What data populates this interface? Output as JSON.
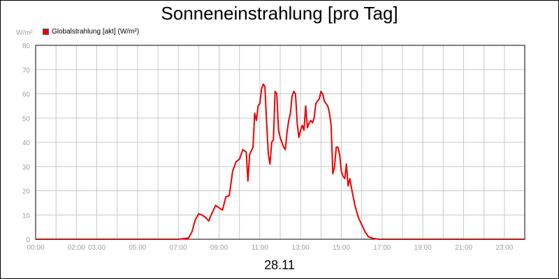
{
  "header": {
    "title": "Sonneneinstrahlung [pro Tag]",
    "unit": "W/m²",
    "date": "28.11"
  },
  "chart_data": {
    "type": "line",
    "title": "Sonneneinstrahlung [pro Tag]",
    "ylabel": "W/m²",
    "xlabel": "28.11",
    "ylim": [
      0,
      80
    ],
    "xlim_hours": [
      0,
      24
    ],
    "y_ticks": [
      "0",
      "10",
      "20",
      "30",
      "40",
      "50",
      "60",
      "70",
      "80"
    ],
    "x_ticks": [
      {
        "hour": 0,
        "label": "00:00"
      },
      {
        "hour": 2,
        "label": "02:00"
      },
      {
        "hour": 3,
        "label": "03:00"
      },
      {
        "hour": 5,
        "label": "05:00"
      },
      {
        "hour": 7,
        "label": "07:00"
      },
      {
        "hour": 9,
        "label": "09:00"
      },
      {
        "hour": 11,
        "label": "11:00"
      },
      {
        "hour": 13,
        "label": "13:00"
      },
      {
        "hour": 15,
        "label": "15:00"
      },
      {
        "hour": 17,
        "label": "17:00"
      },
      {
        "hour": 19,
        "label": "19:00"
      },
      {
        "hour": 21,
        "label": "21:00"
      },
      {
        "hour": 23,
        "label": "23:00"
      }
    ],
    "grid": true,
    "legend_position": "top-left",
    "series": [
      {
        "name": "Globalstrahlung [akt] (W/m²)",
        "color": "#ee0000",
        "x": [
          "00:00",
          "07:00",
          "07:30",
          "07:40",
          "07:50",
          "08:00",
          "08:10",
          "08:20",
          "08:30",
          "08:35",
          "08:40",
          "08:50",
          "09:00",
          "09:10",
          "09:20",
          "09:30",
          "09:40",
          "09:50",
          "10:00",
          "10:10",
          "10:20",
          "10:25",
          "10:30",
          "10:40",
          "10:45",
          "10:50",
          "10:55",
          "11:00",
          "11:05",
          "11:10",
          "11:15",
          "11:20",
          "11:25",
          "11:30",
          "11:35",
          "11:40",
          "11:45",
          "11:50",
          "11:55",
          "12:00",
          "12:05",
          "12:10",
          "12:15",
          "12:20",
          "12:25",
          "12:30",
          "12:35",
          "12:40",
          "12:45",
          "12:50",
          "12:55",
          "13:00",
          "13:05",
          "13:10",
          "13:15",
          "13:20",
          "13:25",
          "13:30",
          "13:35",
          "13:40",
          "13:45",
          "13:50",
          "13:55",
          "14:00",
          "14:05",
          "14:10",
          "14:15",
          "14:20",
          "14:25",
          "14:30",
          "14:35",
          "14:40",
          "14:45",
          "14:50",
          "14:55",
          "15:00",
          "15:05",
          "15:10",
          "15:15",
          "15:20",
          "15:25",
          "15:30",
          "15:40",
          "15:50",
          "16:00",
          "16:10",
          "16:20",
          "16:30",
          "16:40",
          "16:50",
          "17:00",
          "24:00"
        ],
        "y": [
          0,
          0,
          0.5,
          3,
          8,
          10.5,
          10,
          9,
          7.5,
          9.5,
          11,
          14,
          13,
          12,
          17.5,
          18,
          28,
          32,
          33,
          37,
          36,
          24,
          35,
          38,
          52,
          49,
          55,
          56,
          62,
          64,
          63,
          48,
          35,
          31,
          40,
          41,
          61,
          60,
          45,
          42,
          40,
          38,
          37,
          44,
          49,
          52,
          59,
          61,
          60,
          48,
          42,
          45,
          47,
          45,
          55,
          46,
          48,
          49,
          48,
          50,
          56,
          57,
          58,
          61,
          60,
          57,
          56,
          55,
          52,
          47,
          27,
          30,
          38,
          38,
          35,
          28,
          26,
          25,
          31,
          22,
          25,
          21,
          14,
          9,
          6,
          3,
          1,
          0.5,
          0.2,
          0,
          0,
          0
        ]
      }
    ]
  }
}
